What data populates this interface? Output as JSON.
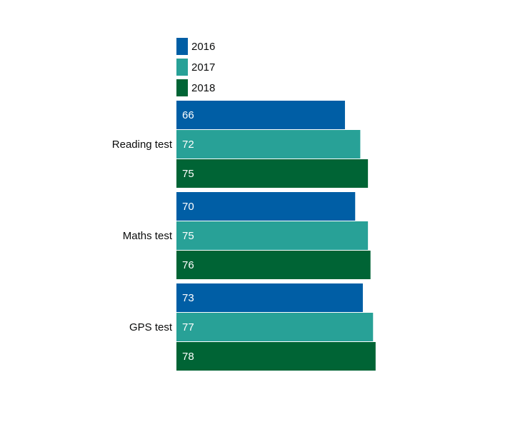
{
  "chart_data": {
    "type": "bar",
    "orientation": "horizontal",
    "title": "",
    "xlabel": "",
    "ylabel": "",
    "categories": [
      "Reading test",
      "Maths test",
      "GPS test"
    ],
    "series": [
      {
        "name": "2016",
        "color": "#005ea5",
        "values": [
          66,
          70,
          73
        ]
      },
      {
        "name": "2017",
        "color": "#28a197",
        "values": [
          72,
          75,
          77
        ]
      },
      {
        "name": "2018",
        "color": "#006435",
        "values": [
          75,
          76,
          78
        ]
      }
    ],
    "xlim": [
      0,
      100
    ],
    "grid": false,
    "legend": "top-left"
  }
}
